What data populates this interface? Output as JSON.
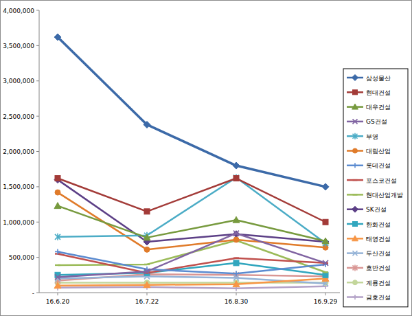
{
  "chart_data": {
    "type": "line",
    "categories": [
      "16.6.20",
      "16.7.22",
      "16.8.30",
      "16.9.29"
    ],
    "ylim": [
      0,
      4000000
    ],
    "yticks": [
      {
        "value": 0,
        "label": "-"
      },
      {
        "value": 500000,
        "label": "500,000"
      },
      {
        "value": 1000000,
        "label": "1,000,000"
      },
      {
        "value": 1500000,
        "label": "1,500,000"
      },
      {
        "value": 2000000,
        "label": "2,000,000"
      },
      {
        "value": 2500000,
        "label": "2,500,000"
      },
      {
        "value": 3000000,
        "label": "3,000,000"
      },
      {
        "value": 3500000,
        "label": "3,500,000"
      },
      {
        "value": 4000000,
        "label": "4,000,000"
      }
    ],
    "grid": false,
    "legend": "right",
    "series": [
      {
        "name": "삼성물산",
        "color": "#3c6aa8",
        "marker": "diamond",
        "values": [
          3620000,
          2380000,
          1800000,
          1500000
        ]
      },
      {
        "name": "현대건설",
        "color": "#a33b38",
        "marker": "square",
        "values": [
          1620000,
          1150000,
          1620000,
          1000000
        ]
      },
      {
        "name": "대우건설",
        "color": "#779a3e",
        "marker": "triangle",
        "values": [
          1230000,
          780000,
          1030000,
          730000
        ]
      },
      {
        "name": "GS건설",
        "color": "#8064a2",
        "marker": "x",
        "values": [
          220000,
          300000,
          840000,
          420000
        ]
      },
      {
        "name": "부영",
        "color": "#4bacc6",
        "marker": "star",
        "values": [
          790000,
          810000,
          1630000,
          700000
        ]
      },
      {
        "name": "대림산업",
        "color": "#e07b2a",
        "marker": "circle",
        "values": [
          1420000,
          610000,
          750000,
          640000
        ]
      },
      {
        "name": "롯데건설",
        "color": "#5b8bd0",
        "marker": "plus",
        "values": [
          580000,
          330000,
          270000,
          400000
        ]
      },
      {
        "name": "포스코건설",
        "color": "#c0504d",
        "marker": "dash",
        "values": [
          550000,
          280000,
          490000,
          420000
        ]
      },
      {
        "name": "현대산업개발",
        "color": "#9bbb59",
        "marker": "dash",
        "values": [
          390000,
          400000,
          740000,
          290000
        ]
      },
      {
        "name": "SK건설",
        "color": "#5c3f86",
        "marker": "diamond",
        "values": [
          1600000,
          720000,
          830000,
          720000
        ]
      },
      {
        "name": "한화건설",
        "color": "#31a6be",
        "marker": "square",
        "values": [
          250000,
          280000,
          420000,
          250000
        ]
      },
      {
        "name": "태영건설",
        "color": "#f79646",
        "marker": "triangle",
        "values": [
          100000,
          110000,
          120000,
          200000
        ]
      },
      {
        "name": "두산건설",
        "color": "#95b3d7",
        "marker": "x",
        "values": [
          200000,
          230000,
          210000,
          130000
        ]
      },
      {
        "name": "호반건설",
        "color": "#d99694",
        "marker": "star",
        "values": [
          170000,
          260000,
          250000,
          230000
        ]
      },
      {
        "name": "계룡건설",
        "color": "#c3d69b",
        "marker": "circle",
        "values": [
          140000,
          140000,
          140000,
          140000
        ]
      },
      {
        "name": "금호건설",
        "color": "#b3a2c7",
        "marker": "plus",
        "values": [
          70000,
          80000,
          60000,
          90000
        ]
      }
    ]
  }
}
